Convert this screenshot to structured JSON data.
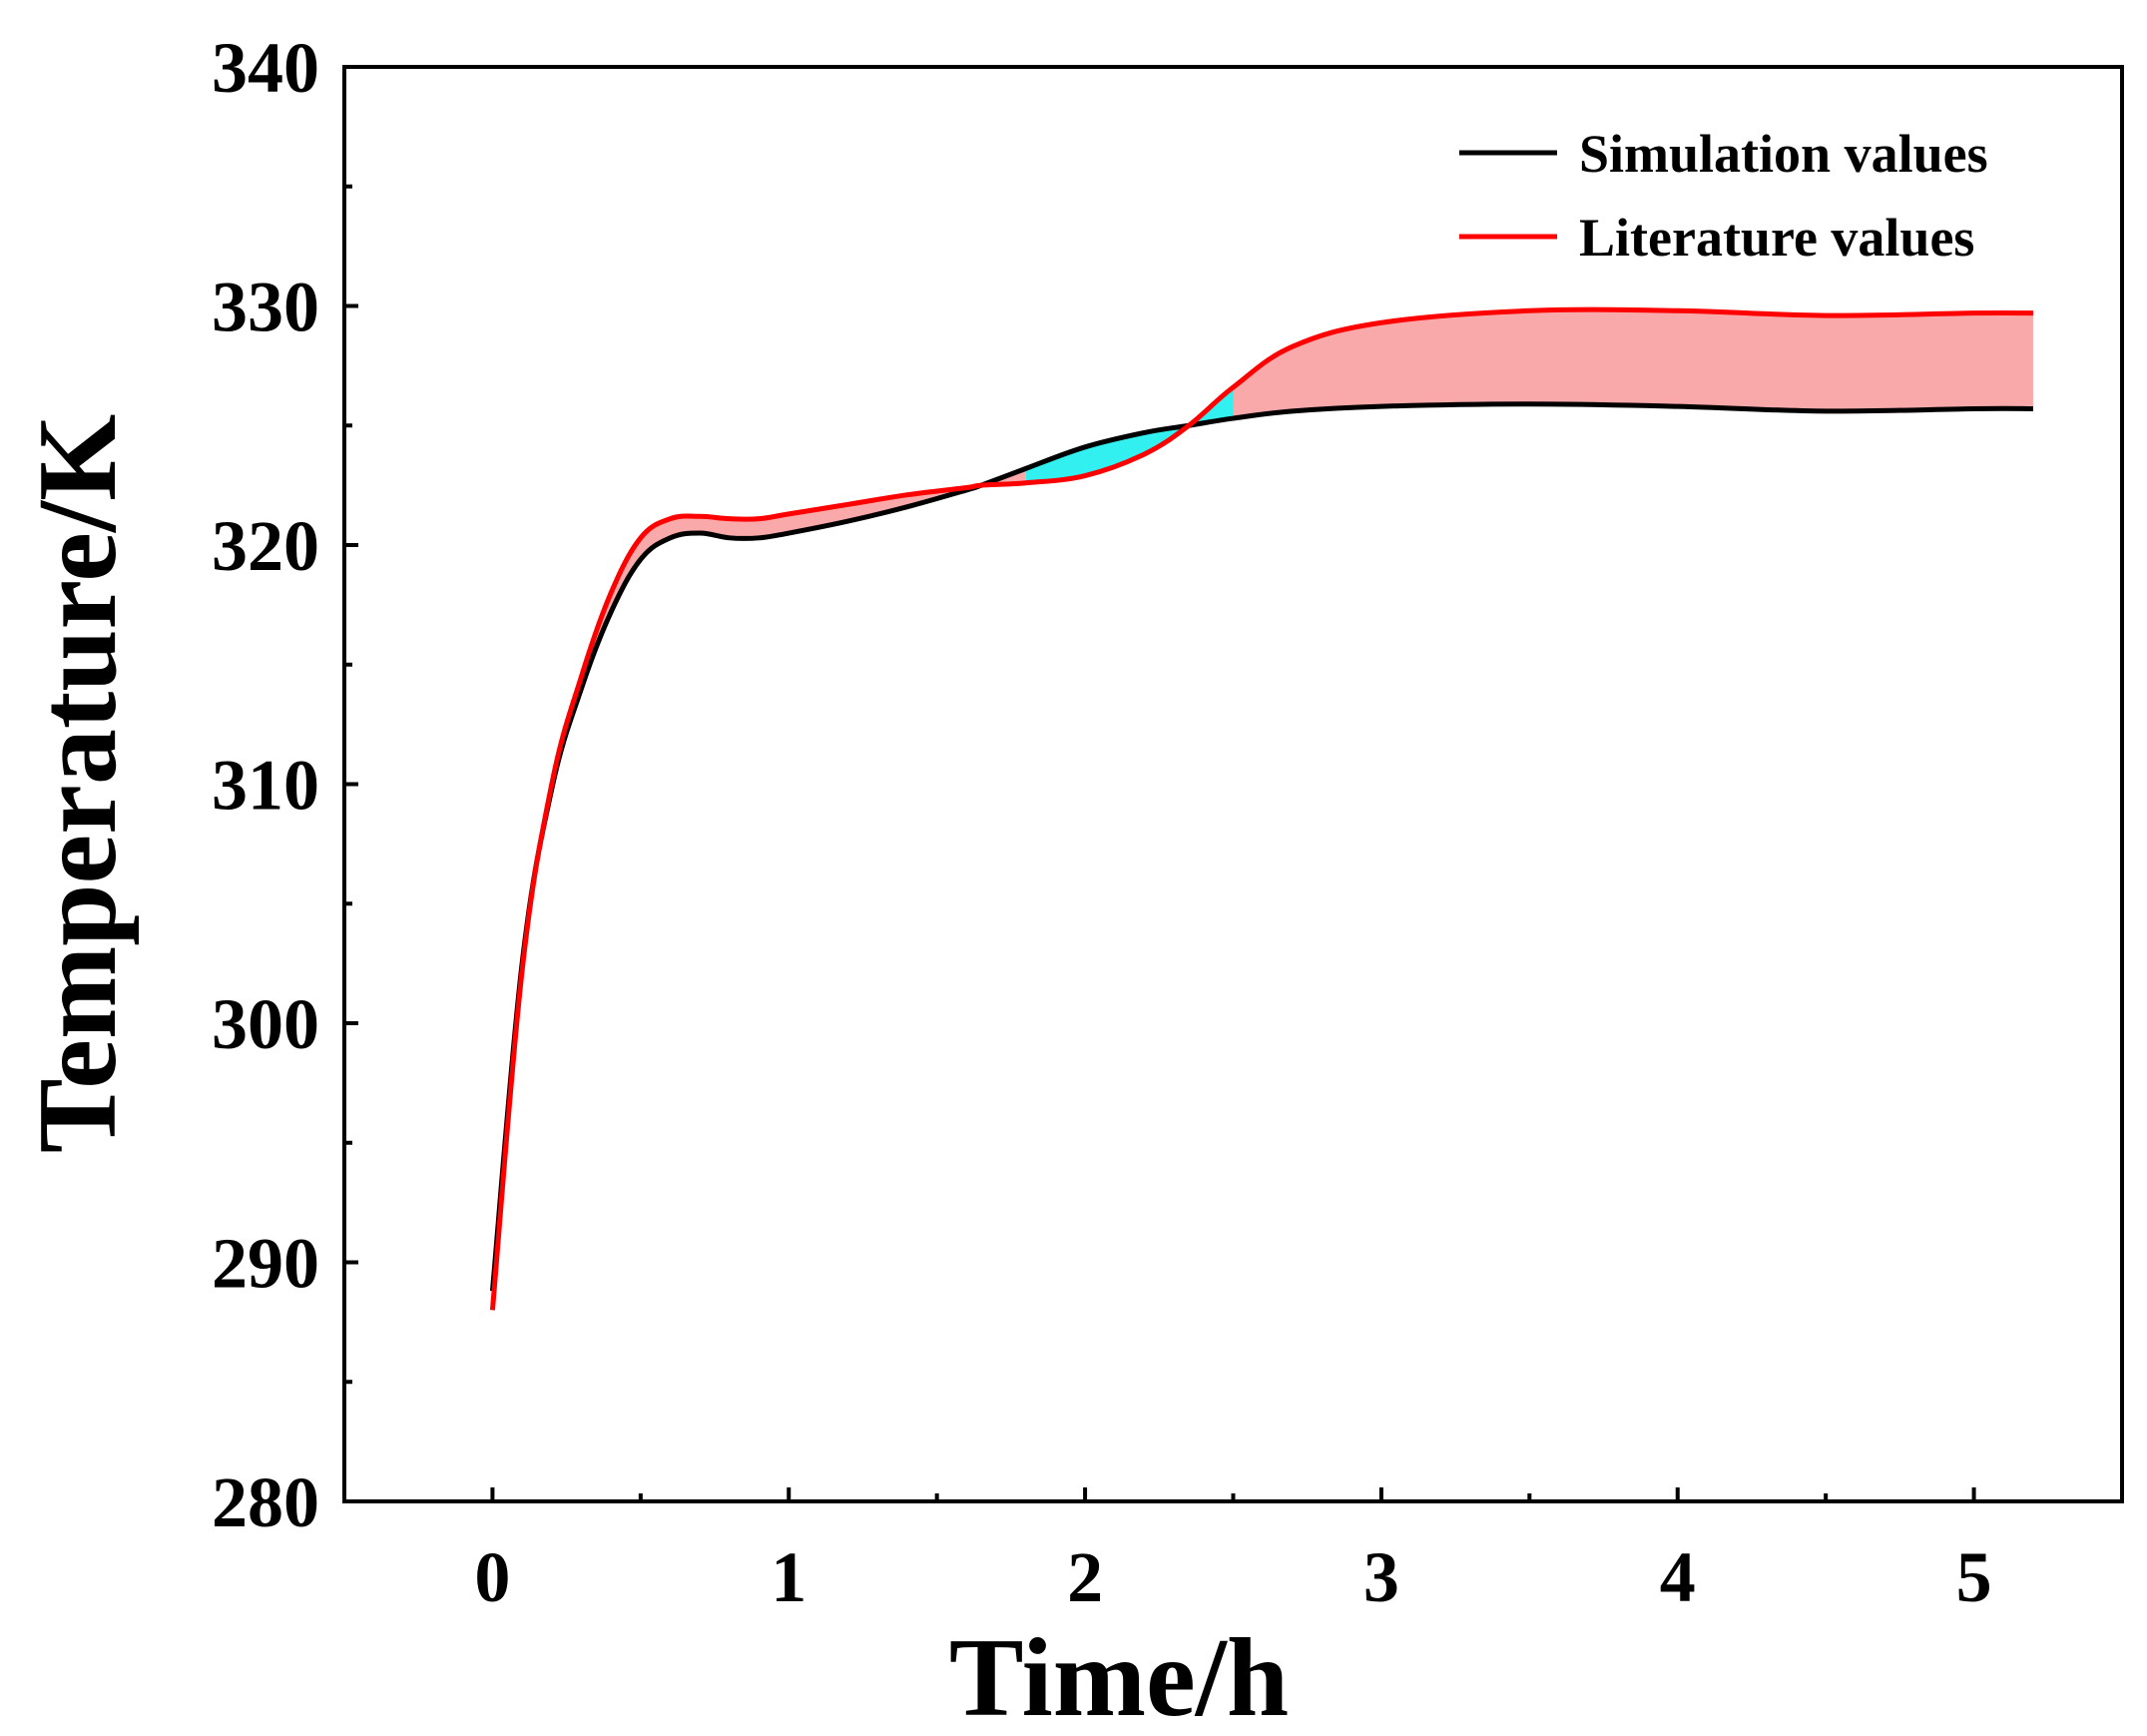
{
  "chart_data": {
    "type": "line",
    "title": "",
    "xlabel": "Time/h",
    "ylabel": "Temperature/K",
    "xlim": [
      -0.5,
      5.5
    ],
    "ylim": [
      280,
      340
    ],
    "x_ticks": [
      0,
      1,
      2,
      3,
      4,
      5
    ],
    "y_ticks": [
      280,
      290,
      300,
      310,
      320,
      330,
      340
    ],
    "x_tick_labels": [
      "0",
      "1",
      "2",
      "3",
      "4",
      "5"
    ],
    "y_tick_labels": [
      "280",
      "290",
      "300",
      "310",
      "320",
      "330",
      "340"
    ],
    "x_minor_ticks": [
      -0.5,
      0.5,
      1.5,
      2.5,
      3.5,
      4.5
    ],
    "y_minor_ticks": [
      285,
      295,
      305,
      315,
      325,
      335
    ],
    "legend_position": "top-right",
    "series": [
      {
        "name": "Simulation values",
        "color": "#000000",
        "x": [
          0,
          0.1,
          0.2,
          0.3,
          0.4,
          0.5,
          0.6,
          0.7,
          0.8,
          0.9,
          1.0,
          1.2,
          1.4,
          1.6,
          1.65,
          1.8,
          2.0,
          2.2,
          2.35,
          2.5,
          2.7,
          3.0,
          3.5,
          4.0,
          4.5,
          5.0,
          5.2
        ],
        "y": [
          288.8,
          302.5,
          309.8,
          314.0,
          317.2,
          319.4,
          320.3,
          320.5,
          320.3,
          320.3,
          320.5,
          321.0,
          321.6,
          322.3,
          322.5,
          323.2,
          324.1,
          324.7,
          325.0,
          325.3,
          325.6,
          325.8,
          325.9,
          325.8,
          325.6,
          325.7,
          325.7
        ]
      },
      {
        "name": "Literature values",
        "color": "#ff0000",
        "x": [
          0,
          0.1,
          0.2,
          0.3,
          0.4,
          0.5,
          0.6,
          0.7,
          0.8,
          0.9,
          1.0,
          1.2,
          1.4,
          1.6,
          1.65,
          1.8,
          2.0,
          2.2,
          2.35,
          2.5,
          2.7,
          3.0,
          3.5,
          4.0,
          4.5,
          5.0,
          5.2
        ],
        "y": [
          288.0,
          302.2,
          310.0,
          314.5,
          318.0,
          320.3,
          321.1,
          321.2,
          321.1,
          321.1,
          321.3,
          321.7,
          322.1,
          322.4,
          322.5,
          322.6,
          322.9,
          323.8,
          325.0,
          326.6,
          328.3,
          329.3,
          329.8,
          329.8,
          329.6,
          329.7,
          329.7
        ]
      }
    ],
    "fill_colors": {
      "literature_above": "#f9a9a9",
      "simulation_above": "#33f0f0"
    }
  }
}
